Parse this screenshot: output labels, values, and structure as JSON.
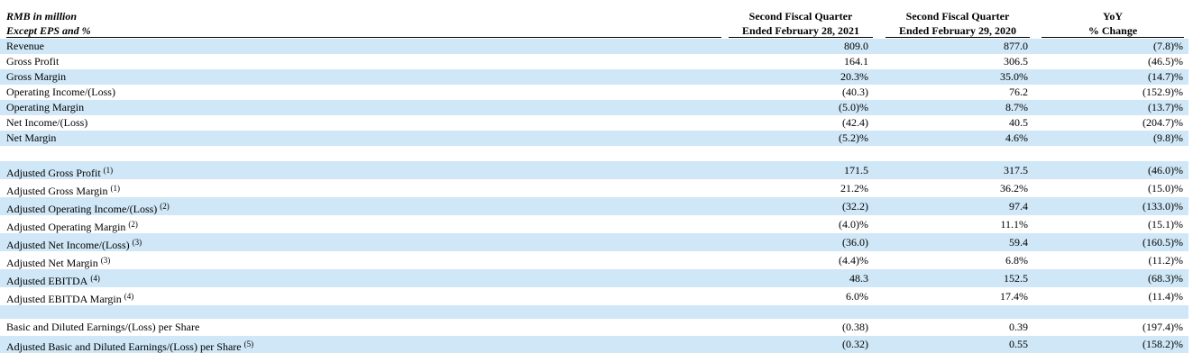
{
  "header": {
    "label_lines": [
      "RMB in million",
      "Except EPS and %"
    ],
    "columns": [
      [
        "Second Fiscal Quarter",
        "Ended February 28, 2021"
      ],
      [
        "Second Fiscal Quarter",
        "Ended February 29, 2020"
      ],
      [
        "YoY",
        "% Change"
      ]
    ]
  },
  "sections": [
    {
      "rows": [
        {
          "label": "Revenue",
          "values": [
            "809.0",
            "877.0",
            "(7.8)%"
          ]
        },
        {
          "label": "Gross Profit",
          "values": [
            "164.1",
            "306.5",
            "(46.5)%"
          ]
        },
        {
          "label": "Gross Margin",
          "values": [
            "20.3%",
            "35.0%",
            "(14.7)%"
          ]
        },
        {
          "label": "Operating Income/(Loss)",
          "values": [
            "(40.3)",
            "76.2",
            "(152.9)%"
          ]
        },
        {
          "label": "Operating Margin",
          "values": [
            "(5.0)%",
            "8.7%",
            "(13.7)%"
          ]
        },
        {
          "label": "Net Income/(Loss)",
          "values": [
            "(42.4)",
            "40.5",
            "(204.7)%"
          ]
        },
        {
          "label": "Net Margin",
          "values": [
            "(5.2)%",
            "4.6%",
            "(9.8)%"
          ]
        }
      ]
    },
    {
      "rows": [
        {
          "label": "Adjusted Gross Profit",
          "note": "(1)",
          "values": [
            "171.5",
            "317.5",
            "(46.0)%"
          ]
        },
        {
          "label": "Adjusted Gross Margin",
          "note": "(1)",
          "values": [
            "21.2%",
            "36.2%",
            "(15.0)%"
          ]
        },
        {
          "label": "Adjusted Operating Income/(Loss)",
          "note": "(2)",
          "values": [
            "(32.2)",
            "97.4",
            "(133.0)%"
          ]
        },
        {
          "label": "Adjusted Operating Margin",
          "note": "(2)",
          "values": [
            "(4.0)%",
            "11.1%",
            "(15.1)%"
          ]
        },
        {
          "label": "Adjusted Net Income/(Loss)",
          "note": "(3)",
          "values": [
            "(36.0)",
            "59.4",
            "(160.5)%"
          ]
        },
        {
          "label": "Adjusted Net Margin",
          "note": "(3)",
          "values": [
            "(4.4)%",
            "6.8%",
            "(11.2)%"
          ]
        },
        {
          "label": "Adjusted EBITDA",
          "note": "(4)",
          "values": [
            "48.3",
            "152.5",
            "(68.3)%"
          ]
        },
        {
          "label": "Adjusted EBITDA Margin",
          "note": "(4)",
          "values": [
            "6.0%",
            "17.4%",
            "(11.4)%"
          ]
        }
      ]
    },
    {
      "rows": [
        {
          "label": "Basic and Diluted Earnings/(Loss) per Share",
          "values": [
            "(0.38)",
            "0.39",
            "(197.4)%"
          ]
        },
        {
          "label": "Adjusted Basic and Diluted Earnings/(Loss) per Share",
          "note": "(5)",
          "values": [
            "(0.32)",
            "0.55",
            "(158.2)%"
          ]
        }
      ]
    }
  ]
}
